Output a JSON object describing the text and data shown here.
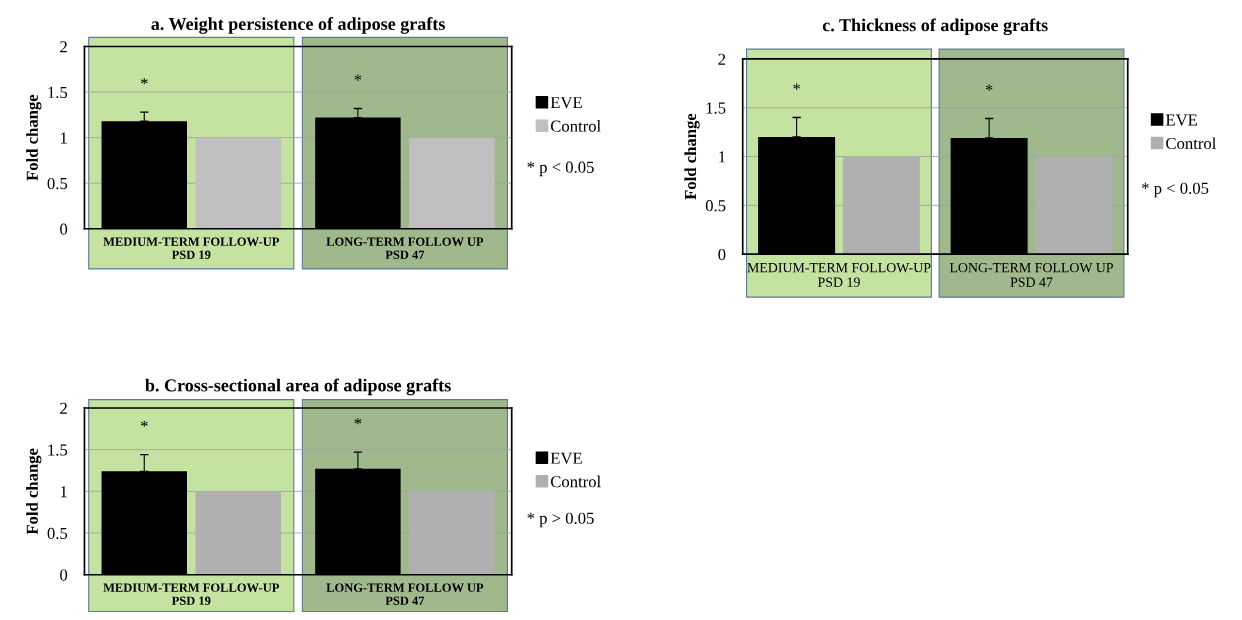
{
  "chart_data": [
    {
      "type": "bar",
      "title": "a. Weight persistence of adipose grafts",
      "ylabel": "Fold change",
      "categories": [
        "MEDIUM-TERM FOLLOW-UP\nPSD 19",
        "LONG-TERM FOLLOW UP\nPSD 47"
      ],
      "series": [
        {
          "name": "EVE",
          "color": "#000000",
          "values": [
            1.18,
            1.22
          ],
          "errors": [
            0.1,
            0.1
          ]
        },
        {
          "name": "Control",
          "color": "#bfbfbf",
          "values": [
            1,
            1
          ]
        }
      ],
      "ylim": [
        0,
        2
      ],
      "yticks": [
        0,
        0.5,
        1,
        1.5,
        2
      ],
      "grid": "y",
      "legend": "right",
      "bands": [
        {
          "axis": "x",
          "from": "MEDIUM-TERM FOLLOW-UP\nPSD 19",
          "to": "MEDIUM-TERM FOLLOW-UP\nPSD 19",
          "color": "#c4e3a0"
        },
        {
          "axis": "x",
          "from": "LONG-TERM FOLLOW UP\nPSD 47",
          "to": "LONG-TERM FOLLOW UP\nPSD 47",
          "color": "#9fb98c"
        }
      ],
      "annotations": [
        "*",
        "*",
        "* p < 0.05"
      ]
    },
    {
      "type": "bar",
      "title": "c. Thickness of adipose grafts",
      "ylabel": "Fold change",
      "categories": [
        "MEDIUM-TERM FOLLOW-UP\nPSD 19",
        "LONG-TERM FOLLOW UP\nPSD 47"
      ],
      "series": [
        {
          "name": "EVE",
          "color": "#000000",
          "values": [
            1.2,
            1.19
          ],
          "errors": [
            0.2,
            0.2
          ]
        },
        {
          "name": "Control",
          "color": "#b0b0b0",
          "values": [
            1,
            1
          ]
        }
      ],
      "ylim": [
        0,
        2
      ],
      "yticks": [
        0,
        0.5,
        1,
        1.5,
        2
      ],
      "grid": "y",
      "legend": "right",
      "bands": [
        {
          "axis": "x",
          "from": "MEDIUM-TERM FOLLOW-UP\nPSD 19",
          "to": "MEDIUM-TERM FOLLOW-UP\nPSD 19",
          "color": "#c4e3a0"
        },
        {
          "axis": "x",
          "from": "LONG-TERM FOLLOW UP\nPSD 47",
          "to": "LONG-TERM FOLLOW UP\nPSD 47",
          "color": "#9fb98c"
        }
      ],
      "annotations": [
        "*",
        "*",
        "* p < 0.05"
      ]
    },
    {
      "type": "bar",
      "title": "b. Cross-sectional area of adipose grafts",
      "ylabel": "Fold change",
      "categories": [
        "MEDIUM-TERM FOLLOW-UP\nPSD 19",
        "LONG-TERM FOLLOW UP\nPSD 47"
      ],
      "series": [
        {
          "name": "EVE",
          "color": "#000000",
          "values": [
            1.24,
            1.27
          ],
          "errors": [
            0.2,
            0.2
          ]
        },
        {
          "name": "Control",
          "color": "#b0b0b0",
          "values": [
            1,
            1
          ]
        }
      ],
      "ylim": [
        0,
        2
      ],
      "yticks": [
        0,
        0.5,
        1,
        1.5,
        2
      ],
      "grid": "y",
      "legend": "right",
      "bands": [
        {
          "axis": "x",
          "from": "MEDIUM-TERM FOLLOW-UP\nPSD 19",
          "to": "MEDIUM-TERM FOLLOW-UP\nPSD 19",
          "color": "#c4e3a0"
        },
        {
          "axis": "x",
          "from": "LONG-TERM FOLLOW UP\nPSD 47",
          "to": "LONG-TERM FOLLOW UP\nPSD 47",
          "color": "#9fb98c"
        }
      ],
      "annotations": [
        "*",
        "*",
        "* p > 0.05"
      ]
    }
  ]
}
